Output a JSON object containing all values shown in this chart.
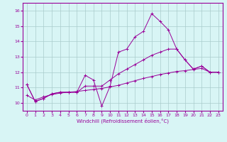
{
  "xlabel": "Windchill (Refroidissement éolien,°C)",
  "x": [
    0,
    1,
    2,
    3,
    4,
    5,
    6,
    7,
    8,
    9,
    10,
    11,
    12,
    13,
    14,
    15,
    16,
    17,
    18,
    19,
    20,
    21,
    22,
    23
  ],
  "line1": [
    11.2,
    10.1,
    10.3,
    10.6,
    10.7,
    10.7,
    10.7,
    11.8,
    11.5,
    9.8,
    11.1,
    13.3,
    13.5,
    14.3,
    14.65,
    15.8,
    15.3,
    14.75,
    13.5,
    12.8,
    12.2,
    12.4,
    12.0,
    12.0
  ],
  "line2": [
    11.2,
    10.1,
    10.3,
    10.6,
    10.7,
    10.7,
    10.7,
    11.1,
    11.1,
    11.1,
    11.5,
    11.9,
    12.2,
    12.5,
    12.8,
    13.1,
    13.3,
    13.5,
    13.5,
    12.8,
    12.2,
    12.4,
    12.0,
    12.0
  ],
  "line3": [
    10.5,
    10.2,
    10.4,
    10.55,
    10.65,
    10.7,
    10.75,
    10.82,
    10.88,
    10.95,
    11.05,
    11.15,
    11.3,
    11.45,
    11.6,
    11.72,
    11.85,
    11.95,
    12.05,
    12.1,
    12.18,
    12.25,
    12.0,
    12.0
  ],
  "color": "#990099",
  "bg_color": "#d8f5f5",
  "grid_color": "#aacccc",
  "ylim": [
    9.5,
    16.5
  ],
  "xlim": [
    -0.5,
    23.5
  ],
  "yticks": [
    10,
    11,
    12,
    13,
    14,
    15,
    16
  ],
  "xtick_labels": [
    "0",
    "1",
    "2",
    "3",
    "4",
    "5",
    "6",
    "7",
    "8",
    "9",
    "10",
    "11",
    "12",
    "13",
    "14",
    "15",
    "16",
    "17",
    "18",
    "19",
    "20",
    "21",
    "22",
    "23"
  ]
}
